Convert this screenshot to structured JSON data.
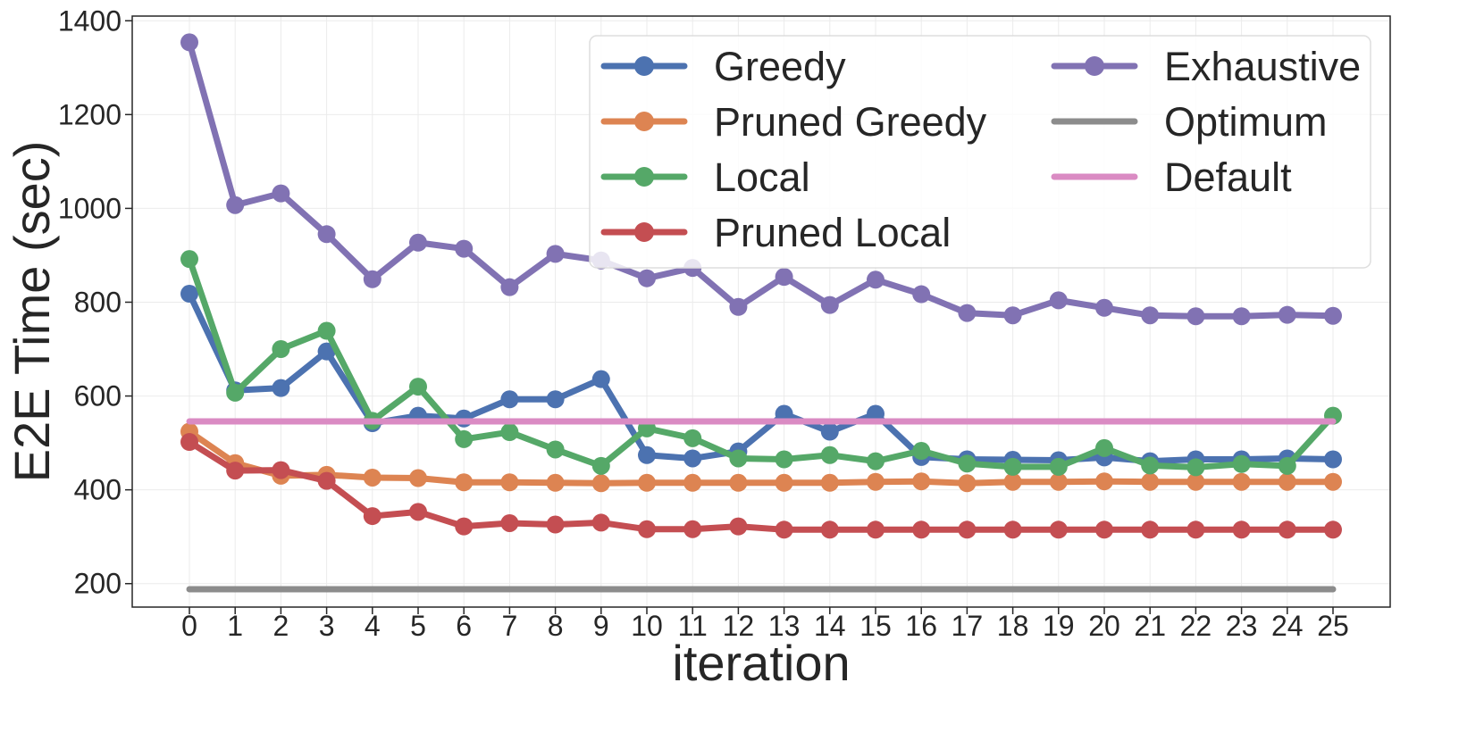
{
  "chart_data": {
    "type": "line",
    "title": "",
    "xlabel": "iteration",
    "ylabel": "E2E Time (sec)",
    "ylim": [
      150,
      1410
    ],
    "xlim": [
      -1.25,
      26.25
    ],
    "x": [
      0,
      1,
      2,
      3,
      4,
      5,
      6,
      7,
      8,
      9,
      10,
      11,
      12,
      13,
      14,
      15,
      16,
      17,
      18,
      19,
      20,
      21,
      22,
      23,
      24,
      25
    ],
    "x_ticks": [
      "0",
      "1",
      "2",
      "3",
      "4",
      "5",
      "6",
      "7",
      "8",
      "9",
      "10",
      "11",
      "12",
      "13",
      "14",
      "15",
      "16",
      "17",
      "18",
      "19",
      "20",
      "21",
      "22",
      "23",
      "24",
      "25"
    ],
    "y_ticks": [
      200,
      400,
      600,
      800,
      1000,
      1200,
      1400
    ],
    "grid": true,
    "legend": {
      "position": "upper-right",
      "columns": 2
    },
    "series": [
      {
        "name": "Greedy",
        "color": "#4c72b0",
        "markers": true,
        "values": [
          818,
          612,
          617,
          695,
          542,
          558,
          552,
          593,
          593,
          636,
          474,
          467,
          482,
          562,
          524,
          562,
          470,
          465,
          464,
          463,
          469,
          461,
          465,
          465,
          467,
          465
        ]
      },
      {
        "name": "Pruned Greedy",
        "color": "#dd8452",
        "markers": true,
        "values": [
          524,
          457,
          430,
          432,
          426,
          425,
          416,
          416,
          415,
          414,
          415,
          415,
          415,
          415,
          415,
          417,
          418,
          414,
          417,
          417,
          418,
          417,
          417,
          417,
          417,
          417
        ]
      },
      {
        "name": "Local",
        "color": "#55a868",
        "markers": true,
        "values": [
          892,
          607,
          700,
          739,
          547,
          620,
          508,
          523,
          486,
          451,
          531,
          510,
          467,
          465,
          474,
          461,
          483,
          456,
          449,
          449,
          489,
          452,
          448,
          455,
          451,
          558
        ]
      },
      {
        "name": "Pruned Local",
        "color": "#c44e52",
        "markers": true,
        "values": [
          502,
          441,
          442,
          419,
          344,
          353,
          322,
          329,
          326,
          330,
          316,
          316,
          322,
          315,
          315,
          315,
          315,
          315,
          315,
          315,
          315,
          315,
          315,
          315,
          315,
          315
        ]
      },
      {
        "name": "Exhaustive",
        "color": "#8172b3",
        "markers": true,
        "values": [
          1354,
          1007,
          1032,
          945,
          849,
          927,
          914,
          832,
          903,
          889,
          851,
          873,
          790,
          854,
          794,
          848,
          817,
          777,
          772,
          804,
          788,
          772,
          770,
          770,
          773,
          771
        ]
      },
      {
        "name": "Optimum",
        "color": "#8c8c8c",
        "markers": false,
        "values": [
          188,
          188,
          188,
          188,
          188,
          188,
          188,
          188,
          188,
          188,
          188,
          188,
          188,
          188,
          188,
          188,
          188,
          188,
          188,
          188,
          188,
          188,
          188,
          188,
          188,
          188
        ]
      },
      {
        "name": "Default",
        "color": "#da8bc3",
        "markers": false,
        "values": [
          546,
          546,
          546,
          546,
          546,
          546,
          546,
          546,
          546,
          546,
          546,
          546,
          546,
          546,
          546,
          546,
          546,
          546,
          546,
          546,
          546,
          546,
          546,
          546,
          546,
          546
        ]
      }
    ]
  }
}
